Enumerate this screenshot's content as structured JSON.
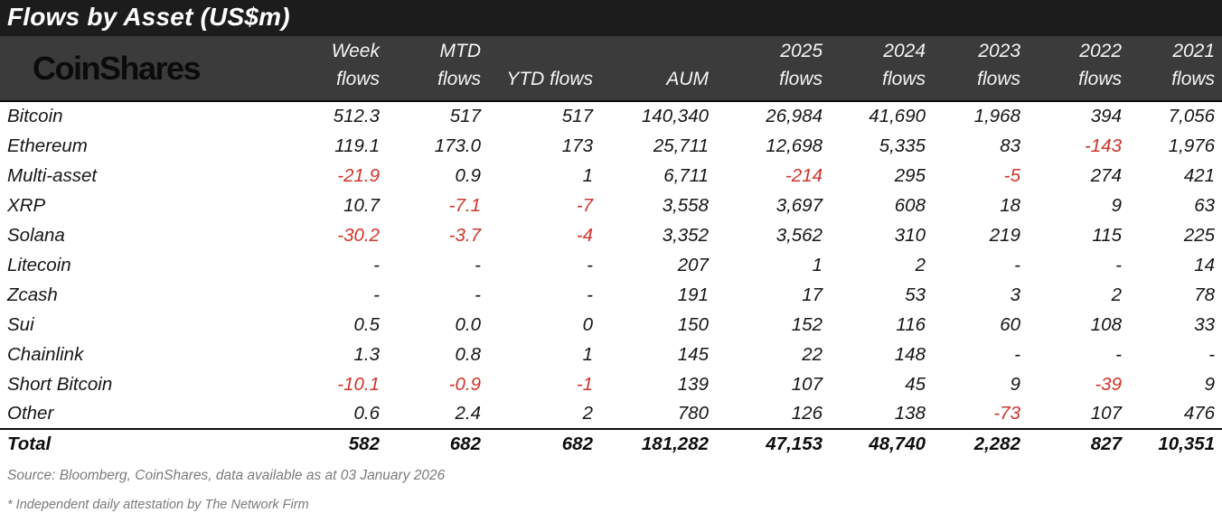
{
  "title": "Flows by Asset (US$m)",
  "logo_text": "CoinShares",
  "colors": {
    "title_bar_bg": "#1c1c1c",
    "header_band_bg": "#3b3b3b",
    "header_text": "#ffffff",
    "logo_text": "#0b0b0b",
    "body_text": "#161616",
    "negative_value": "#d0342c",
    "footer_text": "#7b7b7b"
  },
  "chart_data": {
    "type": "table",
    "title": "Flows by Asset (US$m)",
    "columns": [
      {
        "top": "Week",
        "bottom": "flows"
      },
      {
        "top": "MTD",
        "bottom": "flows"
      },
      {
        "top": "",
        "bottom": "YTD flows"
      },
      {
        "top": "",
        "bottom": "AUM"
      },
      {
        "top": "2025",
        "bottom": "flows"
      },
      {
        "top": "2024",
        "bottom": "flows"
      },
      {
        "top": "2023",
        "bottom": "flows"
      },
      {
        "top": "2022",
        "bottom": "flows"
      },
      {
        "top": "2021",
        "bottom": "flows"
      }
    ],
    "rows": [
      {
        "asset": "Bitcoin",
        "values": [
          "512.3",
          "517",
          "517",
          "140,340",
          "26,984",
          "41,690",
          "1,968",
          "394",
          "7,056"
        ]
      },
      {
        "asset": "Ethereum",
        "values": [
          "119.1",
          "173.0",
          "173",
          "25,711",
          "12,698",
          "5,335",
          "83",
          "-143",
          "1,976"
        ]
      },
      {
        "asset": "Multi-asset",
        "values": [
          "-21.9",
          "0.9",
          "1",
          "6,711",
          "-214",
          "295",
          "-5",
          "274",
          "421"
        ]
      },
      {
        "asset": "XRP",
        "values": [
          "10.7",
          "-7.1",
          "-7",
          "3,558",
          "3,697",
          "608",
          "18",
          "9",
          "63"
        ]
      },
      {
        "asset": "Solana",
        "values": [
          "-30.2",
          "-3.7",
          "-4",
          "3,352",
          "3,562",
          "310",
          "219",
          "115",
          "225"
        ]
      },
      {
        "asset": "Litecoin",
        "values": [
          "-",
          "-",
          "-",
          "207",
          "1",
          "2",
          "-",
          "-",
          "14"
        ]
      },
      {
        "asset": "Zcash",
        "values": [
          "-",
          "-",
          "-",
          "191",
          "17",
          "53",
          "3",
          "2",
          "78"
        ]
      },
      {
        "asset": "Sui",
        "values": [
          "0.5",
          "0.0",
          "0",
          "150",
          "152",
          "116",
          "60",
          "108",
          "33"
        ]
      },
      {
        "asset": "Chainlink",
        "values": [
          "1.3",
          "0.8",
          "1",
          "145",
          "22",
          "148",
          "-",
          "-",
          "-"
        ]
      },
      {
        "asset": "Short Bitcoin",
        "values": [
          "-10.1",
          "-0.9",
          "-1",
          "139",
          "107",
          "45",
          "9",
          "-39",
          "9"
        ]
      },
      {
        "asset": "Other",
        "values": [
          "0.6",
          "2.4",
          "2",
          "780",
          "126",
          "138",
          "-73",
          "107",
          "476"
        ]
      }
    ],
    "total": {
      "asset": "Total",
      "values": [
        "582",
        "682",
        "682",
        "181,282",
        "47,153",
        "48,740",
        "2,282",
        "827",
        "10,351"
      ]
    }
  },
  "footer": {
    "source": "Source: Bloomberg, CoinShares, data available as at 03 January 2026",
    "attestation": "* Independent daily attestation by The Network Firm"
  }
}
